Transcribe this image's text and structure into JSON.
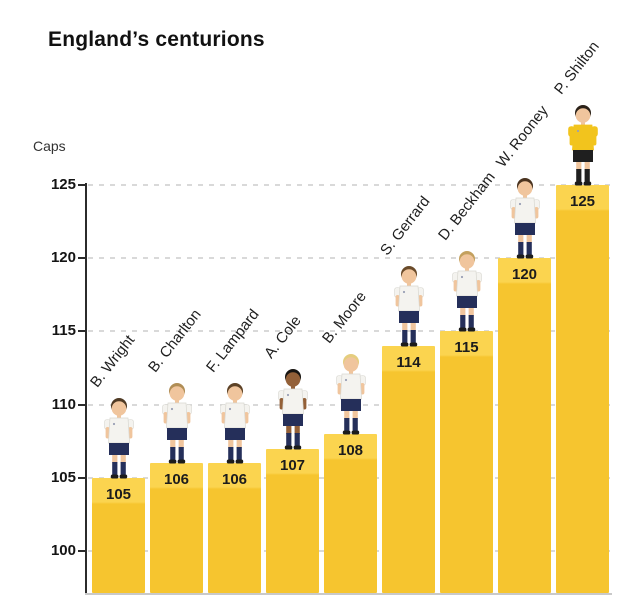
{
  "title": "England’s centurions",
  "y_axis_label": "Caps",
  "colors": {
    "bar": "#f6c52f",
    "bar_top": "#fbd44f",
    "axis": "#2b2b2b",
    "grid": "#d9d9d9",
    "text_dark": "#141414",
    "shirt_white": "#f4f3ef",
    "shirt_trim": "#d8d7d0",
    "navy": "#252f5a",
    "keeper_shirt": "#f2c41d",
    "keeper_dark": "#1f1f1f"
  },
  "players": [
    {
      "name": "B. Wright",
      "caps": 105,
      "skin": "#f0c59d",
      "hair": "#4f3a24",
      "kit": "outfield"
    },
    {
      "name": "B. Charlton",
      "caps": 106,
      "skin": "#f0c59d",
      "hair": "#b08d55",
      "kit": "outfield"
    },
    {
      "name": "F. Lampard",
      "caps": 106,
      "skin": "#f0c59d",
      "hair": "#5d4226",
      "kit": "outfield"
    },
    {
      "name": "A. Cole",
      "caps": 107,
      "skin": "#936038",
      "hair": "#181512",
      "kit": "outfield"
    },
    {
      "name": "B. Moore",
      "caps": 108,
      "skin": "#f0c59d",
      "hair": "#e5cd7e",
      "kit": "outfield"
    },
    {
      "name": "S. Gerrard",
      "caps": 114,
      "skin": "#f0c59d",
      "hair": "#6a4b2a",
      "kit": "outfield"
    },
    {
      "name": "D. Beckham",
      "caps": 115,
      "skin": "#f0c59d",
      "hair": "#c3a05e",
      "kit": "outfield"
    },
    {
      "name": "W. Rooney",
      "caps": 120,
      "skin": "#f0c59d",
      "hair": "#4a331f",
      "kit": "outfield"
    },
    {
      "name": "P. Shilton",
      "caps": 125,
      "skin": "#f0c59d",
      "hair": "#2b2118",
      "kit": "keeper"
    }
  ],
  "chart_data": {
    "type": "bar",
    "title": "England’s centurions",
    "ylabel": "Caps",
    "xlabel": "",
    "categories": [
      "B. Wright",
      "B. Charlton",
      "F. Lampard",
      "A. Cole",
      "B. Moore",
      "S. Gerrard",
      "D. Beckham",
      "W. Rooney",
      "P. Shilton"
    ],
    "values": [
      105,
      106,
      106,
      107,
      108,
      114,
      115,
      120,
      125
    ],
    "yticks": [
      100,
      105,
      110,
      115,
      120,
      125
    ],
    "ylim": [
      100,
      125
    ],
    "grid": "dashed-horizontal",
    "legend": "none",
    "bar_color": "#f6c52f"
  }
}
